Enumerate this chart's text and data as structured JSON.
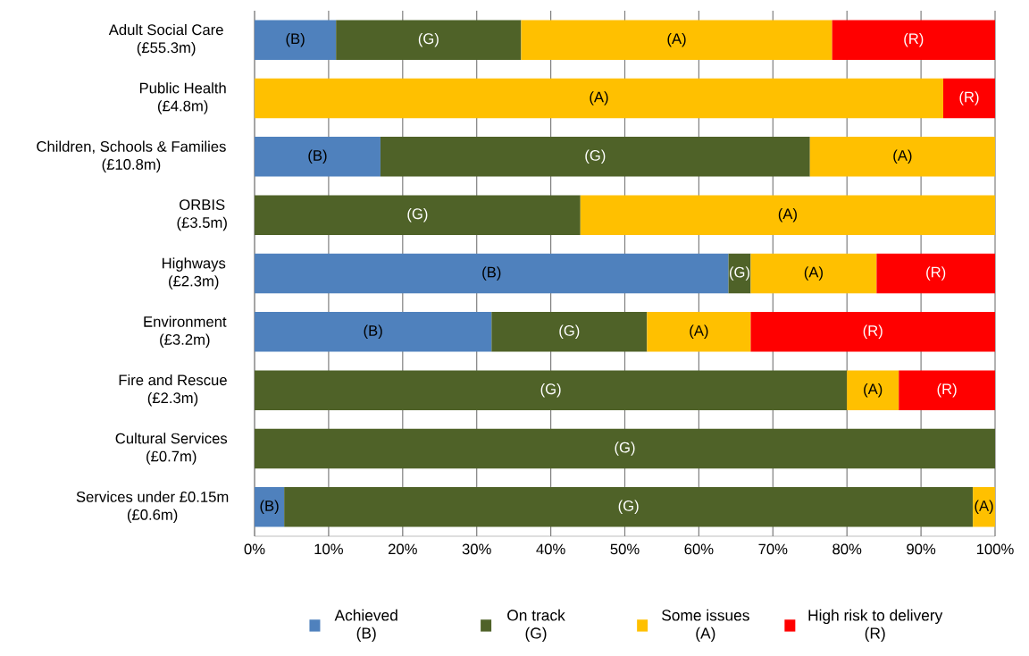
{
  "chart_data": {
    "type": "bar",
    "orientation": "horizontal",
    "stacked": true,
    "data_labels": false,
    "grid": "x",
    "legend": "bottom",
    "categories": [
      "Adult Social Care (£55.3m)",
      "Public Health (£4.8m)",
      "Children, Schools & Families (£10.8m)",
      "ORBIS (£3.5m)",
      "Highways (£2.3m)",
      "Environment (£3.2m)",
      "Fire and Rescue (£2.3m)",
      "Cultural Services (£0.7m)",
      "Services under £0.15m (£0.6m)"
    ],
    "xlim": [
      0,
      100
    ],
    "xticks": [
      {
        "value": 0,
        "label": "0%"
      },
      {
        "value": 10,
        "label": "10%"
      },
      {
        "value": 20,
        "label": "20%"
      },
      {
        "value": 30,
        "label": "30%"
      },
      {
        "value": 40,
        "label": "40%"
      },
      {
        "value": 50,
        "label": "50%"
      },
      {
        "value": 60,
        "label": "60%"
      },
      {
        "value": 70,
        "label": "70%"
      },
      {
        "value": 80,
        "label": "80%"
      },
      {
        "value": 90,
        "label": "90%"
      },
      {
        "value": 100,
        "label": "100%"
      }
    ],
    "series": [
      {
        "name": "Achieved (B)",
        "color": "#4f81bd",
        "values": [
          11,
          null,
          17,
          null,
          64,
          32,
          null,
          null,
          4
        ],
        "value_labels": [
          "(B)",
          null,
          "(B)",
          null,
          "(B)",
          "(B)",
          null,
          null,
          "(B)"
        ]
      },
      {
        "name": "On track (G)",
        "color": "#4f6228",
        "values": [
          25,
          null,
          58,
          44,
          3,
          21,
          80,
          100,
          93
        ],
        "value_labels": [
          "(G)",
          null,
          "(G)",
          "(G)",
          "(G)",
          "(G)",
          "(G)",
          "(G)",
          "(G)"
        ]
      },
      {
        "name": "Some issues (A)",
        "color": "#ffc000",
        "values": [
          42,
          93,
          25,
          56,
          17,
          14,
          7,
          null,
          3
        ],
        "value_labels": [
          "(A)",
          "(A)",
          "(A)",
          "(A)",
          "(A)",
          "(A)",
          "(A)",
          null,
          "(A)"
        ]
      },
      {
        "name": "High risk to delivery (R)",
        "color": "#ff0000",
        "values": [
          22,
          7,
          null,
          null,
          16,
          33,
          13,
          null,
          null
        ],
        "value_labels": [
          "(R)",
          "(R)",
          null,
          null,
          "(R)",
          "(R)",
          "(R)",
          null,
          null
        ]
      }
    ]
  }
}
